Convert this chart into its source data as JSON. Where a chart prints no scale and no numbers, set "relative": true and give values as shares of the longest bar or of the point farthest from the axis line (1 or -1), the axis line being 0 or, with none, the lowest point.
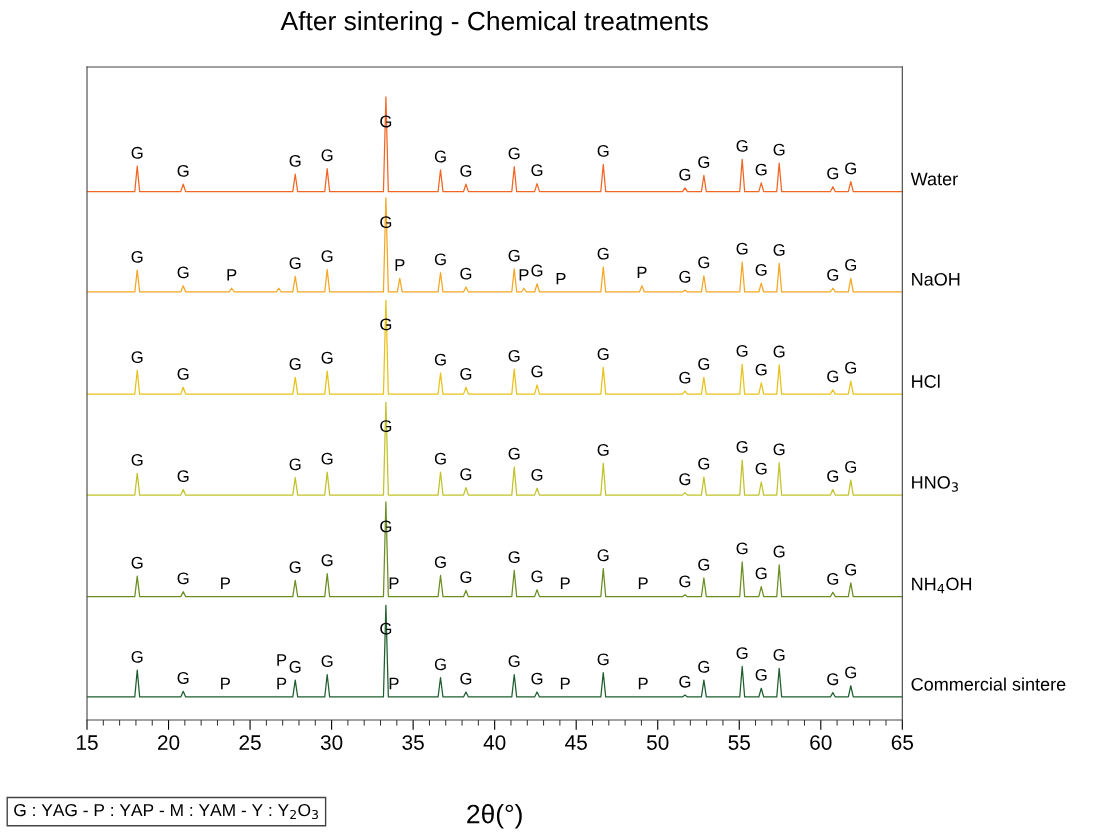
{
  "chart_data": {
    "type": "line",
    "title": "After sintering - Chemical treatments",
    "xlabel": "2θ(°)",
    "relative": true,
    "xlim": [
      15,
      65
    ],
    "xticks": [
      15,
      20,
      25,
      30,
      35,
      40,
      45,
      50,
      55,
      60,
      65
    ],
    "tick_labels": "x",
    "grid": false,
    "x": [
      15,
      17.93,
      18.08,
      18.23,
      20.75,
      20.9,
      21.05,
      27.62,
      27.77,
      27.92,
      29.58,
      29.73,
      29.88,
      33.18,
      33.33,
      33.48,
      36.53,
      36.68,
      36.83,
      38.09,
      38.24,
      38.39,
      41.05,
      41.2,
      41.35,
      42.45,
      42.6,
      42.75,
      46.51,
      46.66,
      46.81,
      51.52,
      51.67,
      51.82,
      52.68,
      52.83,
      52.98,
      55.03,
      55.18,
      55.33,
      56.2,
      56.35,
      56.5,
      57.3,
      57.45,
      57.6,
      60.59,
      60.74,
      60.89,
      61.69,
      61.84,
      61.99,
      65
    ],
    "series": [
      {
        "name": "Water",
        "color": "#f26522",
        "values": [
          0.848,
          0.848,
          0.889,
          0.848,
          0.848,
          0.86,
          0.848,
          0.848,
          0.876,
          0.848,
          0.848,
          0.885,
          0.848,
          0.848,
          1.0,
          0.848,
          0.848,
          0.883,
          0.848,
          0.848,
          0.86,
          0.848,
          0.848,
          0.888,
          0.848,
          0.848,
          0.861,
          0.848,
          0.848,
          0.892,
          0.848,
          0.848,
          0.854,
          0.848,
          0.848,
          0.874,
          0.848,
          0.848,
          0.9,
          0.848,
          0.848,
          0.862,
          0.848,
          0.848,
          0.894,
          0.848,
          0.848,
          0.856,
          0.848,
          0.848,
          0.864,
          0.848,
          0.848
        ]
      },
      {
        "name": "NaOH",
        "color": "#f5a623",
        "x": [
          15,
          17.93,
          18.08,
          18.23,
          20.75,
          20.9,
          21.05,
          23.72,
          23.87,
          24.02,
          26.61,
          26.76,
          26.91,
          27.62,
          27.77,
          27.92,
          29.58,
          29.73,
          29.88,
          33.18,
          33.33,
          33.48,
          34.03,
          34.18,
          34.33,
          36.53,
          36.68,
          36.83,
          38.09,
          38.24,
          38.39,
          41.05,
          41.2,
          41.35,
          41.64,
          41.79,
          41.94,
          42.45,
          42.6,
          42.75,
          44.06,
          46.51,
          46.66,
          46.81,
          48.88,
          49.03,
          49.18,
          51.52,
          51.67,
          51.82,
          52.68,
          52.83,
          52.98,
          55.03,
          55.18,
          55.33,
          56.2,
          56.35,
          56.5,
          57.3,
          57.45,
          57.6,
          60.59,
          60.74,
          60.89,
          61.69,
          61.84,
          61.99,
          65
        ],
        "values": [
          0.687,
          0.687,
          0.722,
          0.687,
          0.687,
          0.697,
          0.687,
          0.687,
          0.693,
          0.687,
          0.687,
          0.693,
          0.687,
          0.687,
          0.712,
          0.687,
          0.687,
          0.723,
          0.687,
          0.687,
          0.838,
          0.687,
          0.687,
          0.709,
          0.687,
          0.687,
          0.718,
          0.687,
          0.687,
          0.695,
          0.687,
          0.687,
          0.724,
          0.687,
          0.687,
          0.693,
          0.687,
          0.687,
          0.7,
          0.687,
          0.687,
          0.687,
          0.727,
          0.687,
          0.687,
          0.697,
          0.687,
          0.687,
          0.69,
          0.687,
          0.687,
          0.713,
          0.687,
          0.687,
          0.735,
          0.687,
          0.687,
          0.701,
          0.687,
          0.687,
          0.733,
          0.687,
          0.687,
          0.693,
          0.687,
          0.687,
          0.709,
          0.687,
          0.687
        ]
      },
      {
        "name": "HCl",
        "color": "#e8c21a",
        "values": [
          0.523,
          0.523,
          0.561,
          0.523,
          0.523,
          0.534,
          0.523,
          0.523,
          0.55,
          0.523,
          0.523,
          0.56,
          0.523,
          0.523,
          0.674,
          0.523,
          0.523,
          0.557,
          0.523,
          0.523,
          0.534,
          0.523,
          0.523,
          0.563,
          0.523,
          0.523,
          0.538,
          0.523,
          0.523,
          0.566,
          0.523,
          0.523,
          0.528,
          0.523,
          0.523,
          0.55,
          0.523,
          0.523,
          0.571,
          0.523,
          0.523,
          0.541,
          0.523,
          0.523,
          0.57,
          0.523,
          0.523,
          0.53,
          0.523,
          0.523,
          0.544,
          0.523,
          0.523
        ]
      },
      {
        "name": "HNO$_{3}$",
        "color": "#c2c22a",
        "values": [
          0.361,
          0.361,
          0.396,
          0.361,
          0.361,
          0.37,
          0.361,
          0.361,
          0.389,
          0.361,
          0.361,
          0.398,
          0.361,
          0.361,
          0.51,
          0.361,
          0.361,
          0.398,
          0.361,
          0.361,
          0.373,
          0.361,
          0.361,
          0.406,
          0.361,
          0.361,
          0.372,
          0.361,
          0.361,
          0.412,
          0.361,
          0.361,
          0.365,
          0.361,
          0.361,
          0.39,
          0.361,
          0.361,
          0.417,
          0.361,
          0.361,
          0.382,
          0.361,
          0.361,
          0.413,
          0.361,
          0.361,
          0.37,
          0.361,
          0.361,
          0.385,
          0.361,
          0.361
        ]
      },
      {
        "name": "NH$_{4}$OH",
        "color": "#6b8e23",
        "x": [
          15,
          17.93,
          18.08,
          18.23,
          20.75,
          20.9,
          21.05,
          23.48,
          27.62,
          27.77,
          27.92,
          29.58,
          29.73,
          29.88,
          33.18,
          33.33,
          33.48,
          33.82,
          36.53,
          36.68,
          36.83,
          38.09,
          38.24,
          38.39,
          41.05,
          41.2,
          41.35,
          42.45,
          42.6,
          42.75,
          44.32,
          46.51,
          46.66,
          46.81,
          49.1,
          51.52,
          51.67,
          51.82,
          52.68,
          52.83,
          52.98,
          55.03,
          55.18,
          55.33,
          56.2,
          56.35,
          56.5,
          57.3,
          57.45,
          57.6,
          60.59,
          60.74,
          60.89,
          61.69,
          61.84,
          61.99,
          65
        ],
        "values": [
          0.198,
          0.198,
          0.231,
          0.198,
          0.198,
          0.206,
          0.198,
          0.198,
          0.198,
          0.224,
          0.198,
          0.198,
          0.235,
          0.198,
          0.198,
          0.35,
          0.198,
          0.198,
          0.198,
          0.232,
          0.198,
          0.198,
          0.208,
          0.198,
          0.198,
          0.24,
          0.198,
          0.198,
          0.209,
          0.198,
          0.198,
          0.198,
          0.243,
          0.198,
          0.198,
          0.198,
          0.201,
          0.198,
          0.198,
          0.228,
          0.198,
          0.198,
          0.254,
          0.198,
          0.198,
          0.214,
          0.198,
          0.198,
          0.249,
          0.198,
          0.198,
          0.205,
          0.198,
          0.198,
          0.22,
          0.198,
          0.198
        ]
      },
      {
        "name": "Commercial sintere",
        "color": "#1e5e2e",
        "x": [
          15,
          17.93,
          18.08,
          18.23,
          20.75,
          20.9,
          21.05,
          23.48,
          26.93,
          27.62,
          27.77,
          27.92,
          29.58,
          29.73,
          29.88,
          33.18,
          33.33,
          33.48,
          33.82,
          36.53,
          36.68,
          36.83,
          38.09,
          38.24,
          38.39,
          41.05,
          41.2,
          41.35,
          42.45,
          42.6,
          42.75,
          44.32,
          46.51,
          46.66,
          46.81,
          49.1,
          51.52,
          51.67,
          51.82,
          52.68,
          52.83,
          52.98,
          55.03,
          55.18,
          55.33,
          56.2,
          56.35,
          56.5,
          57.3,
          57.45,
          57.6,
          60.59,
          60.74,
          60.89,
          61.69,
          61.84,
          61.99,
          65
        ],
        "values": [
          0.037,
          0.037,
          0.08,
          0.037,
          0.037,
          0.046,
          0.037,
          0.037,
          0.037,
          0.037,
          0.064,
          0.037,
          0.037,
          0.073,
          0.037,
          0.037,
          0.184,
          0.037,
          0.037,
          0.037,
          0.068,
          0.037,
          0.037,
          0.045,
          0.037,
          0.037,
          0.073,
          0.037,
          0.037,
          0.045,
          0.037,
          0.037,
          0.037,
          0.076,
          0.037,
          0.037,
          0.037,
          0.04,
          0.037,
          0.037,
          0.064,
          0.037,
          0.037,
          0.086,
          0.037,
          0.037,
          0.051,
          0.037,
          0.037,
          0.083,
          0.037,
          0.037,
          0.044,
          0.037,
          0.037,
          0.055,
          0.037,
          0.037
        ]
      }
    ],
    "annotations": [
      "G : YAG - P : YAP - M : YAM - Y : Y$_{2}$O$_{3}$",
      {
        "text": "G",
        "x": 18.08,
        "y": 0.889
      },
      {
        "text": "G",
        "x": 20.9,
        "y": 0.86
      },
      {
        "text": "G",
        "x": 27.77,
        "y": 0.876
      },
      {
        "text": "G",
        "x": 29.73,
        "y": 0.885
      },
      {
        "text": "G",
        "x": 33.33,
        "y": 1.0
      },
      {
        "text": "G",
        "x": 36.68,
        "y": 0.883
      },
      {
        "text": "G",
        "x": 38.24,
        "y": 0.86
      },
      {
        "text": "G",
        "x": 41.2,
        "y": 0.888
      },
      {
        "text": "G",
        "x": 42.6,
        "y": 0.861
      },
      {
        "text": "G",
        "x": 46.66,
        "y": 0.892
      },
      {
        "text": "G",
        "x": 51.67,
        "y": 0.854
      },
      {
        "text": "G",
        "x": 52.83,
        "y": 0.874
      },
      {
        "text": "G",
        "x": 55.18,
        "y": 0.9
      },
      {
        "text": "G",
        "x": 56.35,
        "y": 0.862
      },
      {
        "text": "G",
        "x": 57.45,
        "y": 0.894
      },
      {
        "text": "G",
        "x": 60.74,
        "y": 0.856
      },
      {
        "text": "G",
        "x": 61.84,
        "y": 0.864
      },
      {
        "text": "G",
        "x": 18.08,
        "y": 0.722
      },
      {
        "text": "G",
        "x": 20.9,
        "y": 0.697
      },
      {
        "text": "P",
        "x": 23.87,
        "y": 0.693
      },
      {
        "text": "G",
        "x": 27.77,
        "y": 0.712
      },
      {
        "text": "G",
        "x": 29.73,
        "y": 0.723
      },
      {
        "text": "G",
        "x": 33.33,
        "y": 0.838
      },
      {
        "text": "P",
        "x": 34.18,
        "y": 0.709
      },
      {
        "text": "G",
        "x": 36.68,
        "y": 0.718
      },
      {
        "text": "G",
        "x": 38.24,
        "y": 0.695
      },
      {
        "text": "G",
        "x": 41.2,
        "y": 0.724
      },
      {
        "text": "P",
        "x": 41.79,
        "y": 0.693
      },
      {
        "text": "G",
        "x": 42.6,
        "y": 0.7
      },
      {
        "text": "P",
        "x": 44.06,
        "y": 0.687
      },
      {
        "text": "G",
        "x": 46.66,
        "y": 0.727
      },
      {
        "text": "P",
        "x": 49.03,
        "y": 0.697
      },
      {
        "text": "G",
        "x": 51.67,
        "y": 0.69
      },
      {
        "text": "G",
        "x": 52.83,
        "y": 0.713
      },
      {
        "text": "G",
        "x": 55.18,
        "y": 0.735
      },
      {
        "text": "G",
        "x": 56.35,
        "y": 0.701
      },
      {
        "text": "G",
        "x": 57.45,
        "y": 0.733
      },
      {
        "text": "G",
        "x": 60.74,
        "y": 0.693
      },
      {
        "text": "G",
        "x": 61.84,
        "y": 0.709
      },
      {
        "text": "G",
        "x": 18.08,
        "y": 0.561
      },
      {
        "text": "G",
        "x": 20.9,
        "y": 0.534
      },
      {
        "text": "G",
        "x": 27.77,
        "y": 0.55
      },
      {
        "text": "G",
        "x": 29.73,
        "y": 0.56
      },
      {
        "text": "G",
        "x": 33.33,
        "y": 0.674
      },
      {
        "text": "G",
        "x": 36.68,
        "y": 0.557
      },
      {
        "text": "G",
        "x": 38.24,
        "y": 0.534
      },
      {
        "text": "G",
        "x": 41.2,
        "y": 0.563
      },
      {
        "text": "G",
        "x": 42.6,
        "y": 0.538
      },
      {
        "text": "G",
        "x": 46.66,
        "y": 0.566
      },
      {
        "text": "G",
        "x": 51.67,
        "y": 0.528
      },
      {
        "text": "G",
        "x": 52.83,
        "y": 0.55
      },
      {
        "text": "G",
        "x": 55.18,
        "y": 0.571
      },
      {
        "text": "G",
        "x": 56.35,
        "y": 0.541
      },
      {
        "text": "G",
        "x": 57.45,
        "y": 0.57
      },
      {
        "text": "G",
        "x": 60.74,
        "y": 0.53
      },
      {
        "text": "G",
        "x": 61.84,
        "y": 0.544
      },
      {
        "text": "G",
        "x": 18.08,
        "y": 0.396
      },
      {
        "text": "G",
        "x": 20.9,
        "y": 0.37
      },
      {
        "text": "G",
        "x": 27.77,
        "y": 0.389
      },
      {
        "text": "G",
        "x": 29.73,
        "y": 0.398
      },
      {
        "text": "G",
        "x": 33.33,
        "y": 0.51
      },
      {
        "text": "G",
        "x": 36.68,
        "y": 0.398
      },
      {
        "text": "G",
        "x": 38.24,
        "y": 0.373
      },
      {
        "text": "G",
        "x": 41.2,
        "y": 0.406
      },
      {
        "text": "G",
        "x": 42.6,
        "y": 0.372
      },
      {
        "text": "G",
        "x": 46.66,
        "y": 0.412
      },
      {
        "text": "G",
        "x": 51.67,
        "y": 0.365
      },
      {
        "text": "G",
        "x": 52.83,
        "y": 0.39
      },
      {
        "text": "G",
        "x": 55.18,
        "y": 0.417
      },
      {
        "text": "G",
        "x": 56.35,
        "y": 0.382
      },
      {
        "text": "G",
        "x": 57.45,
        "y": 0.413
      },
      {
        "text": "G",
        "x": 60.74,
        "y": 0.37
      },
      {
        "text": "G",
        "x": 61.84,
        "y": 0.385
      },
      {
        "text": "G",
        "x": 18.08,
        "y": 0.231
      },
      {
        "text": "G",
        "x": 20.9,
        "y": 0.206
      },
      {
        "text": "P",
        "x": 23.48,
        "y": 0.198
      },
      {
        "text": "G",
        "x": 27.77,
        "y": 0.224
      },
      {
        "text": "G",
        "x": 29.73,
        "y": 0.235
      },
      {
        "text": "G",
        "x": 33.33,
        "y": 0.35
      },
      {
        "text": "P",
        "x": 33.82,
        "y": 0.198
      },
      {
        "text": "G",
        "x": 36.68,
        "y": 0.232
      },
      {
        "text": "G",
        "x": 38.24,
        "y": 0.208
      },
      {
        "text": "G",
        "x": 41.2,
        "y": 0.24
      },
      {
        "text": "G",
        "x": 42.6,
        "y": 0.209
      },
      {
        "text": "P",
        "x": 44.32,
        "y": 0.198
      },
      {
        "text": "G",
        "x": 46.66,
        "y": 0.243
      },
      {
        "text": "P",
        "x": 49.1,
        "y": 0.198
      },
      {
        "text": "G",
        "x": 51.67,
        "y": 0.201
      },
      {
        "text": "G",
        "x": 52.83,
        "y": 0.228
      },
      {
        "text": "G",
        "x": 55.18,
        "y": 0.254
      },
      {
        "text": "G",
        "x": 56.35,
        "y": 0.214
      },
      {
        "text": "G",
        "x": 57.45,
        "y": 0.249
      },
      {
        "text": "G",
        "x": 60.74,
        "y": 0.205
      },
      {
        "text": "G",
        "x": 61.84,
        "y": 0.22
      },
      {
        "text": "G",
        "x": 18.08,
        "y": 0.08
      },
      {
        "text": "G",
        "x": 20.9,
        "y": 0.046
      },
      {
        "text": "P",
        "x": 23.48,
        "y": 0.037
      },
      {
        "text": "P",
        "x": 26.93,
        "y": 0.037
      },
      {
        "text": "P",
        "x": 26.93,
        "y": 0.037
      },
      {
        "text": "G",
        "x": 27.77,
        "y": 0.064
      },
      {
        "text": "G",
        "x": 29.73,
        "y": 0.073
      },
      {
        "text": "G",
        "x": 33.33,
        "y": 0.184
      },
      {
        "text": "P",
        "x": 33.82,
        "y": 0.037
      },
      {
        "text": "G",
        "x": 36.68,
        "y": 0.068
      },
      {
        "text": "G",
        "x": 38.24,
        "y": 0.045
      },
      {
        "text": "G",
        "x": 41.2,
        "y": 0.073
      },
      {
        "text": "G",
        "x": 42.6,
        "y": 0.045
      },
      {
        "text": "P",
        "x": 44.32,
        "y": 0.037
      },
      {
        "text": "G",
        "x": 46.66,
        "y": 0.076
      },
      {
        "text": "P",
        "x": 49.1,
        "y": 0.037
      },
      {
        "text": "G",
        "x": 51.67,
        "y": 0.04
      },
      {
        "text": "G",
        "x": 52.83,
        "y": 0.064
      },
      {
        "text": "G",
        "x": 55.18,
        "y": 0.086
      },
      {
        "text": "G",
        "x": 56.35,
        "y": 0.051
      },
      {
        "text": "G",
        "x": 57.45,
        "y": 0.083
      },
      {
        "text": "G",
        "x": 60.74,
        "y": 0.044
      },
      {
        "text": "G",
        "x": 61.84,
        "y": 0.055
      }
    ]
  }
}
